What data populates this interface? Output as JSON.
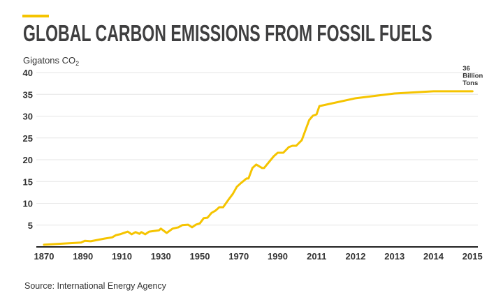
{
  "chart_data": {
    "type": "line",
    "title": "GLOBAL CARBON EMISSIONS FROM FOSSIL FUELS",
    "ylabel": "Gigatons CO",
    "ylabel_subscript": "2",
    "xlabel": "",
    "ylim": [
      0,
      40
    ],
    "yticks": [
      5,
      10,
      15,
      20,
      25,
      30,
      35,
      40
    ],
    "x_tick_labels": [
      "1870",
      "1890",
      "1910",
      "1930",
      "1950",
      "1970",
      "1990",
      "2011",
      "2012",
      "2013",
      "2014",
      "2015"
    ],
    "grid": true,
    "line_color": "#f5c400",
    "accent_color": "#f5c400",
    "annotation": [
      "36",
      "Billion",
      "Tons"
    ],
    "source": "Source: International Energy Agency",
    "series": [
      {
        "name": "Global carbon emissions",
        "points": [
          [
            1870,
            0.5
          ],
          [
            1889,
            1.0
          ],
          [
            1891,
            1.4
          ],
          [
            1894,
            1.3
          ],
          [
            1901,
            1.9
          ],
          [
            1905,
            2.2
          ],
          [
            1907,
            2.7
          ],
          [
            1909,
            2.9
          ],
          [
            1913,
            3.5
          ],
          [
            1915,
            2.9
          ],
          [
            1917,
            3.4
          ],
          [
            1919,
            3.0
          ],
          [
            1920,
            3.4
          ],
          [
            1922,
            2.9
          ],
          [
            1924,
            3.5
          ],
          [
            1929,
            3.8
          ],
          [
            1930,
            4.2
          ],
          [
            1933,
            3.2
          ],
          [
            1936,
            4.2
          ],
          [
            1939,
            4.5
          ],
          [
            1941,
            5.0
          ],
          [
            1944,
            5.1
          ],
          [
            1946,
            4.5
          ],
          [
            1948,
            5.1
          ],
          [
            1950,
            5.4
          ],
          [
            1952,
            6.6
          ],
          [
            1954,
            6.7
          ],
          [
            1956,
            7.8
          ],
          [
            1958,
            8.3
          ],
          [
            1960,
            9.1
          ],
          [
            1962,
            9.1
          ],
          [
            1965,
            11.0
          ],
          [
            1967,
            12.2
          ],
          [
            1969,
            13.8
          ],
          [
            1971,
            14.6
          ],
          [
            1974,
            15.7
          ],
          [
            1975,
            15.7
          ],
          [
            1977,
            18.1
          ],
          [
            1979,
            18.9
          ],
          [
            1982,
            18.1
          ],
          [
            1983,
            18.1
          ],
          [
            1988,
            20.8
          ],
          [
            1990,
            21.6
          ],
          [
            1993,
            21.6
          ],
          [
            1996,
            22.9
          ],
          [
            1998,
            23.2
          ],
          [
            2000,
            23.2
          ],
          [
            2003,
            24.5
          ],
          [
            2007,
            29.1
          ],
          [
            2009,
            30.1
          ],
          [
            2010.95,
            30.4
          ],
          [
            2011.07,
            32.3
          ],
          [
            2012,
            34.1
          ],
          [
            2013,
            35.2
          ],
          [
            2014,
            35.7
          ],
          [
            2015,
            35.7
          ]
        ]
      }
    ]
  }
}
